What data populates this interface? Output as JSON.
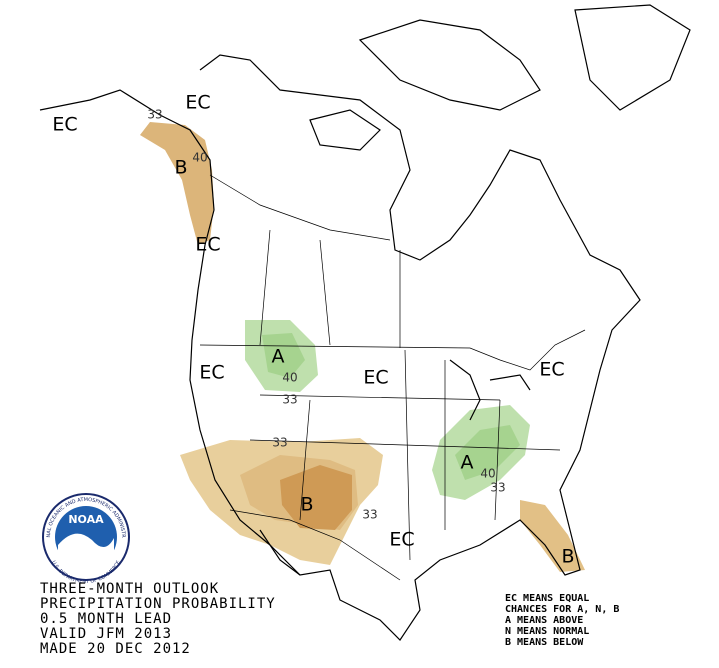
{
  "map": {
    "region_labels": [
      "EC",
      "EC",
      "EC",
      "EC",
      "EC",
      "EC",
      "EC",
      "A",
      "A",
      "B",
      "B",
      "B"
    ],
    "contour_labels": [
      33,
      40,
      40,
      33,
      33,
      33,
      40,
      33
    ],
    "outlook_lines": [
      "THREE-MONTH OUTLOOK",
      "PRECIPITATION PROBABILITY",
      "0.5 MONTH LEAD",
      "VALID JFM 2013",
      "MADE 20 DEC 2012"
    ],
    "legend_lines": [
      "EC MEANS EQUAL",
      "CHANCES FOR A, N, B",
      "A MEANS ABOVE",
      "N MEANS NORMAL",
      "B MEANS BELOW"
    ],
    "logo": {
      "name": "NOAA",
      "ring_top": "NATIONAL OCEANIC AND ATMOSPHERIC ADMINISTRATION",
      "ring_bottom": "U.S. DEPARTMENT OF COMMERCE"
    }
  }
}
